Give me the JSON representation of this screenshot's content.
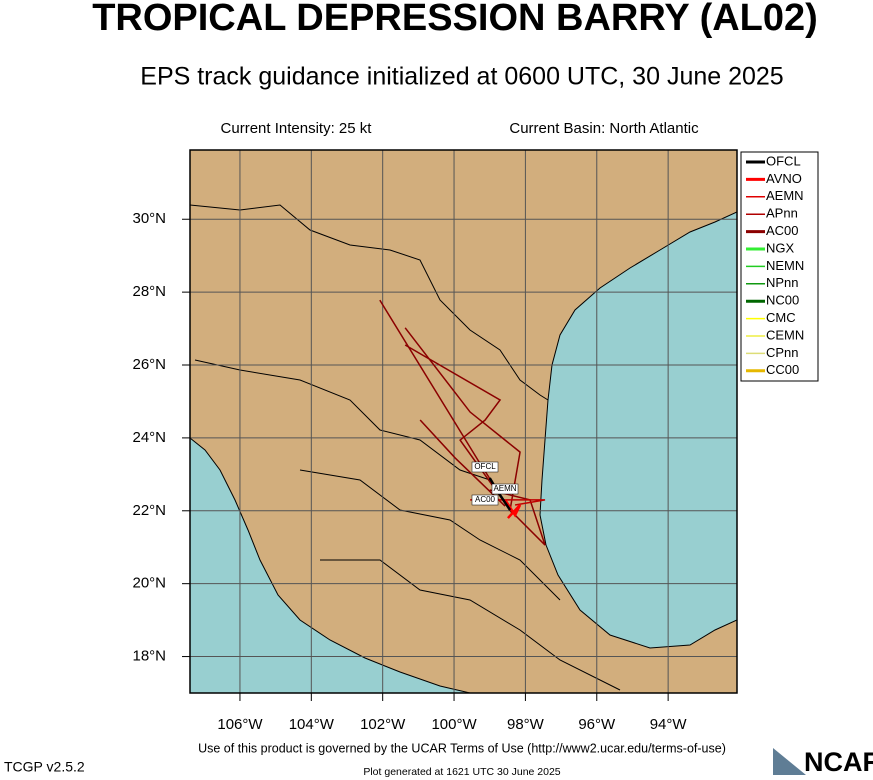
{
  "header": {
    "title": "TROPICAL DEPRESSION BARRY (AL02)",
    "subtitle": "EPS track guidance initialized at 0600 UTC, 30 June 2025"
  },
  "info": {
    "intensity": "Current Intensity: 25 kt",
    "basin": "Current Basin: North Atlantic"
  },
  "map": {
    "xlim": [
      -107.4,
      -92.07
    ],
    "ylim": [
      17,
      31.9
    ],
    "xticks": [
      {
        "value": -106,
        "label": "106°W"
      },
      {
        "value": -104,
        "label": "104°W"
      },
      {
        "value": -102,
        "label": "102°W"
      },
      {
        "value": -100,
        "label": "100°W"
      },
      {
        "value": -98,
        "label": "98°W"
      },
      {
        "value": -96,
        "label": "96°W"
      },
      {
        "value": -94,
        "label": "94°W"
      }
    ],
    "yticks": [
      {
        "value": 18,
        "label": "18°N"
      },
      {
        "value": 20,
        "label": "20°N"
      },
      {
        "value": 22,
        "label": "22°N"
      },
      {
        "value": 24,
        "label": "24°N"
      },
      {
        "value": 26,
        "label": "26°N"
      },
      {
        "value": 28,
        "label": "28°N"
      },
      {
        "value": 30,
        "label": "30°N"
      }
    ],
    "tracks": [
      {
        "color": "#8b0000",
        "lon": [
          -98.38,
          -99.33,
          -102.08
        ],
        "lat": [
          21.94,
          23.39,
          27.78
        ]
      },
      {
        "color": "#8b0000",
        "lon": [
          -98.43,
          -98.15,
          -99.55,
          -101.37
        ],
        "lat": [
          22.02,
          23.61,
          24.71,
          27.02
        ]
      },
      {
        "color": "#8b0000",
        "lon": [
          -98.57,
          -99.97,
          -100.95
        ],
        "lat": [
          22.13,
          23.45,
          24.49
        ]
      },
      {
        "color": "#8b0000",
        "lon": [
          -98.38,
          -97.45,
          -97.87,
          -99.0
        ],
        "lat": [
          21.97,
          21.06,
          22.3,
          22.57
        ]
      },
      {
        "color": "#8b0000",
        "lon": [
          -98.43,
          -99.83,
          -99.13,
          -98.71,
          -101.37
        ],
        "lat": [
          22.02,
          23.94,
          24.49,
          25.04,
          26.55
        ]
      },
      {
        "color": "#c00000",
        "lon": [
          -98.29,
          -97.45,
          -99.55
        ],
        "lat": [
          22.16,
          22.3,
          22.3
        ]
      },
      {
        "color": "#ff0000",
        "lon": [
          -98.57,
          -98.29,
          -98.15,
          -98.49
        ],
        "lat": [
          22.3,
          21.88,
          22.16,
          21.8
        ]
      },
      {
        "color": "#000000",
        "lon": [
          -99.0,
          -98.77,
          -98.43
        ],
        "lat": [
          22.9,
          22.52,
          22.02
        ]
      }
    ],
    "track_labels": [
      "OFCL",
      "AEMN",
      "AC00"
    ],
    "legend": [
      {
        "name": "OFCL",
        "color": "#000000"
      },
      {
        "name": "AVNO",
        "color": "#ff0000"
      },
      {
        "name": "AEMN",
        "color": "#e00000"
      },
      {
        "name": "APnn",
        "color": "#b00000"
      },
      {
        "name": "AC00",
        "color": "#8b0000"
      },
      {
        "name": "NGX",
        "color": "#33ee33"
      },
      {
        "name": "NEMN",
        "color": "#22cc22"
      },
      {
        "name": "NPnn",
        "color": "#119911"
      },
      {
        "name": "NC00",
        "color": "#006600"
      },
      {
        "name": "CMC",
        "color": "#ffff00"
      },
      {
        "name": "CEMN",
        "color": "#eeee44"
      },
      {
        "name": "CPnn",
        "color": "#dddd77"
      },
      {
        "name": "CC00",
        "color": "#e6b800"
      }
    ]
  },
  "footer": {
    "terms": "Use of this product is governed by the UCAR Terms of Use (http://www2.ucar.edu/terms-of-use)",
    "version": "TCGP v2.5.2",
    "generated": "Plot generated at 1621 UTC   30 June 2025",
    "logo": "NCAR"
  }
}
